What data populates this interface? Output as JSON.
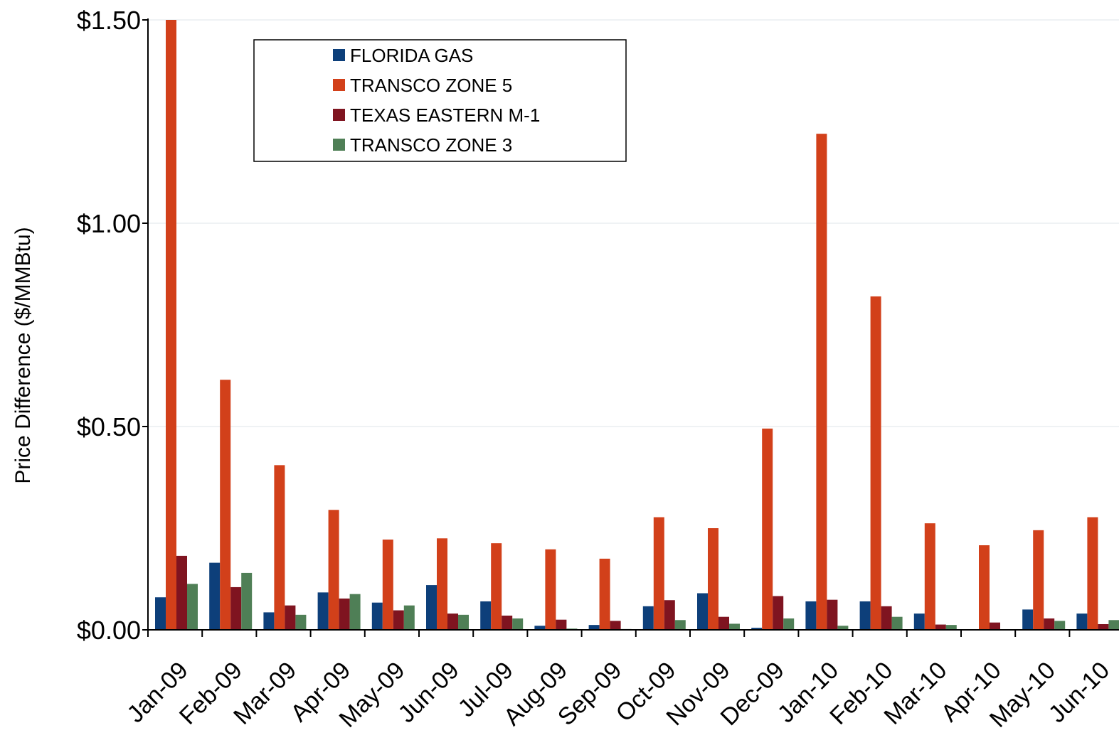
{
  "chart_data": {
    "type": "bar",
    "title": "",
    "xlabel": "",
    "ylabel": "Price Difference  ($/MMBtu)",
    "ylim": [
      0,
      1.5
    ],
    "yticks": [
      "$0.00",
      "$0.50",
      "$1.00",
      "$1.50"
    ],
    "ytick_values": [
      0,
      0.5,
      1.0,
      1.5
    ],
    "grid": true,
    "legend_position": "top-center",
    "categories": [
      "Jan-09",
      "Feb-09",
      "Mar-09",
      "Apr-09",
      "May-09",
      "Jun-09",
      "Jul-09",
      "Aug-09",
      "Sep-09",
      "Oct-09",
      "Nov-09",
      "Dec-09",
      "Jan-10",
      "Feb-10",
      "Mar-10",
      "Apr-10",
      "May-10",
      "Jun-10"
    ],
    "series": [
      {
        "name": "FLORIDA GAS",
        "color": "#0D3F7A",
        "values": [
          0.08,
          0.165,
          0.043,
          0.092,
          0.067,
          0.11,
          0.07,
          0.01,
          0.012,
          0.058,
          0.09,
          0.005,
          0.07,
          0.07,
          0.04,
          0.0,
          0.05,
          0.04
        ]
      },
      {
        "name": "TRANSCO ZONE 5",
        "color": "#D2401A",
        "values": [
          1.5,
          0.615,
          0.405,
          0.295,
          0.222,
          0.225,
          0.213,
          0.198,
          0.175,
          0.277,
          0.25,
          0.495,
          1.22,
          0.82,
          0.262,
          0.208,
          0.245,
          0.277
        ]
      },
      {
        "name": "TEXAS EASTERN M-1",
        "color": "#7F1420",
        "values": [
          0.182,
          0.105,
          0.06,
          0.077,
          0.048,
          0.04,
          0.035,
          0.025,
          0.022,
          0.073,
          0.032,
          0.083,
          0.074,
          0.058,
          0.013,
          0.018,
          0.028,
          0.014
        ]
      },
      {
        "name": "TRANSCO ZONE 3",
        "color": "#4F7F56",
        "values": [
          0.113,
          0.14,
          0.037,
          0.088,
          0.06,
          0.037,
          0.028,
          0.003,
          0.002,
          0.024,
          0.015,
          0.028,
          0.01,
          0.032,
          0.012,
          0.0,
          0.022,
          0.024
        ]
      }
    ]
  }
}
